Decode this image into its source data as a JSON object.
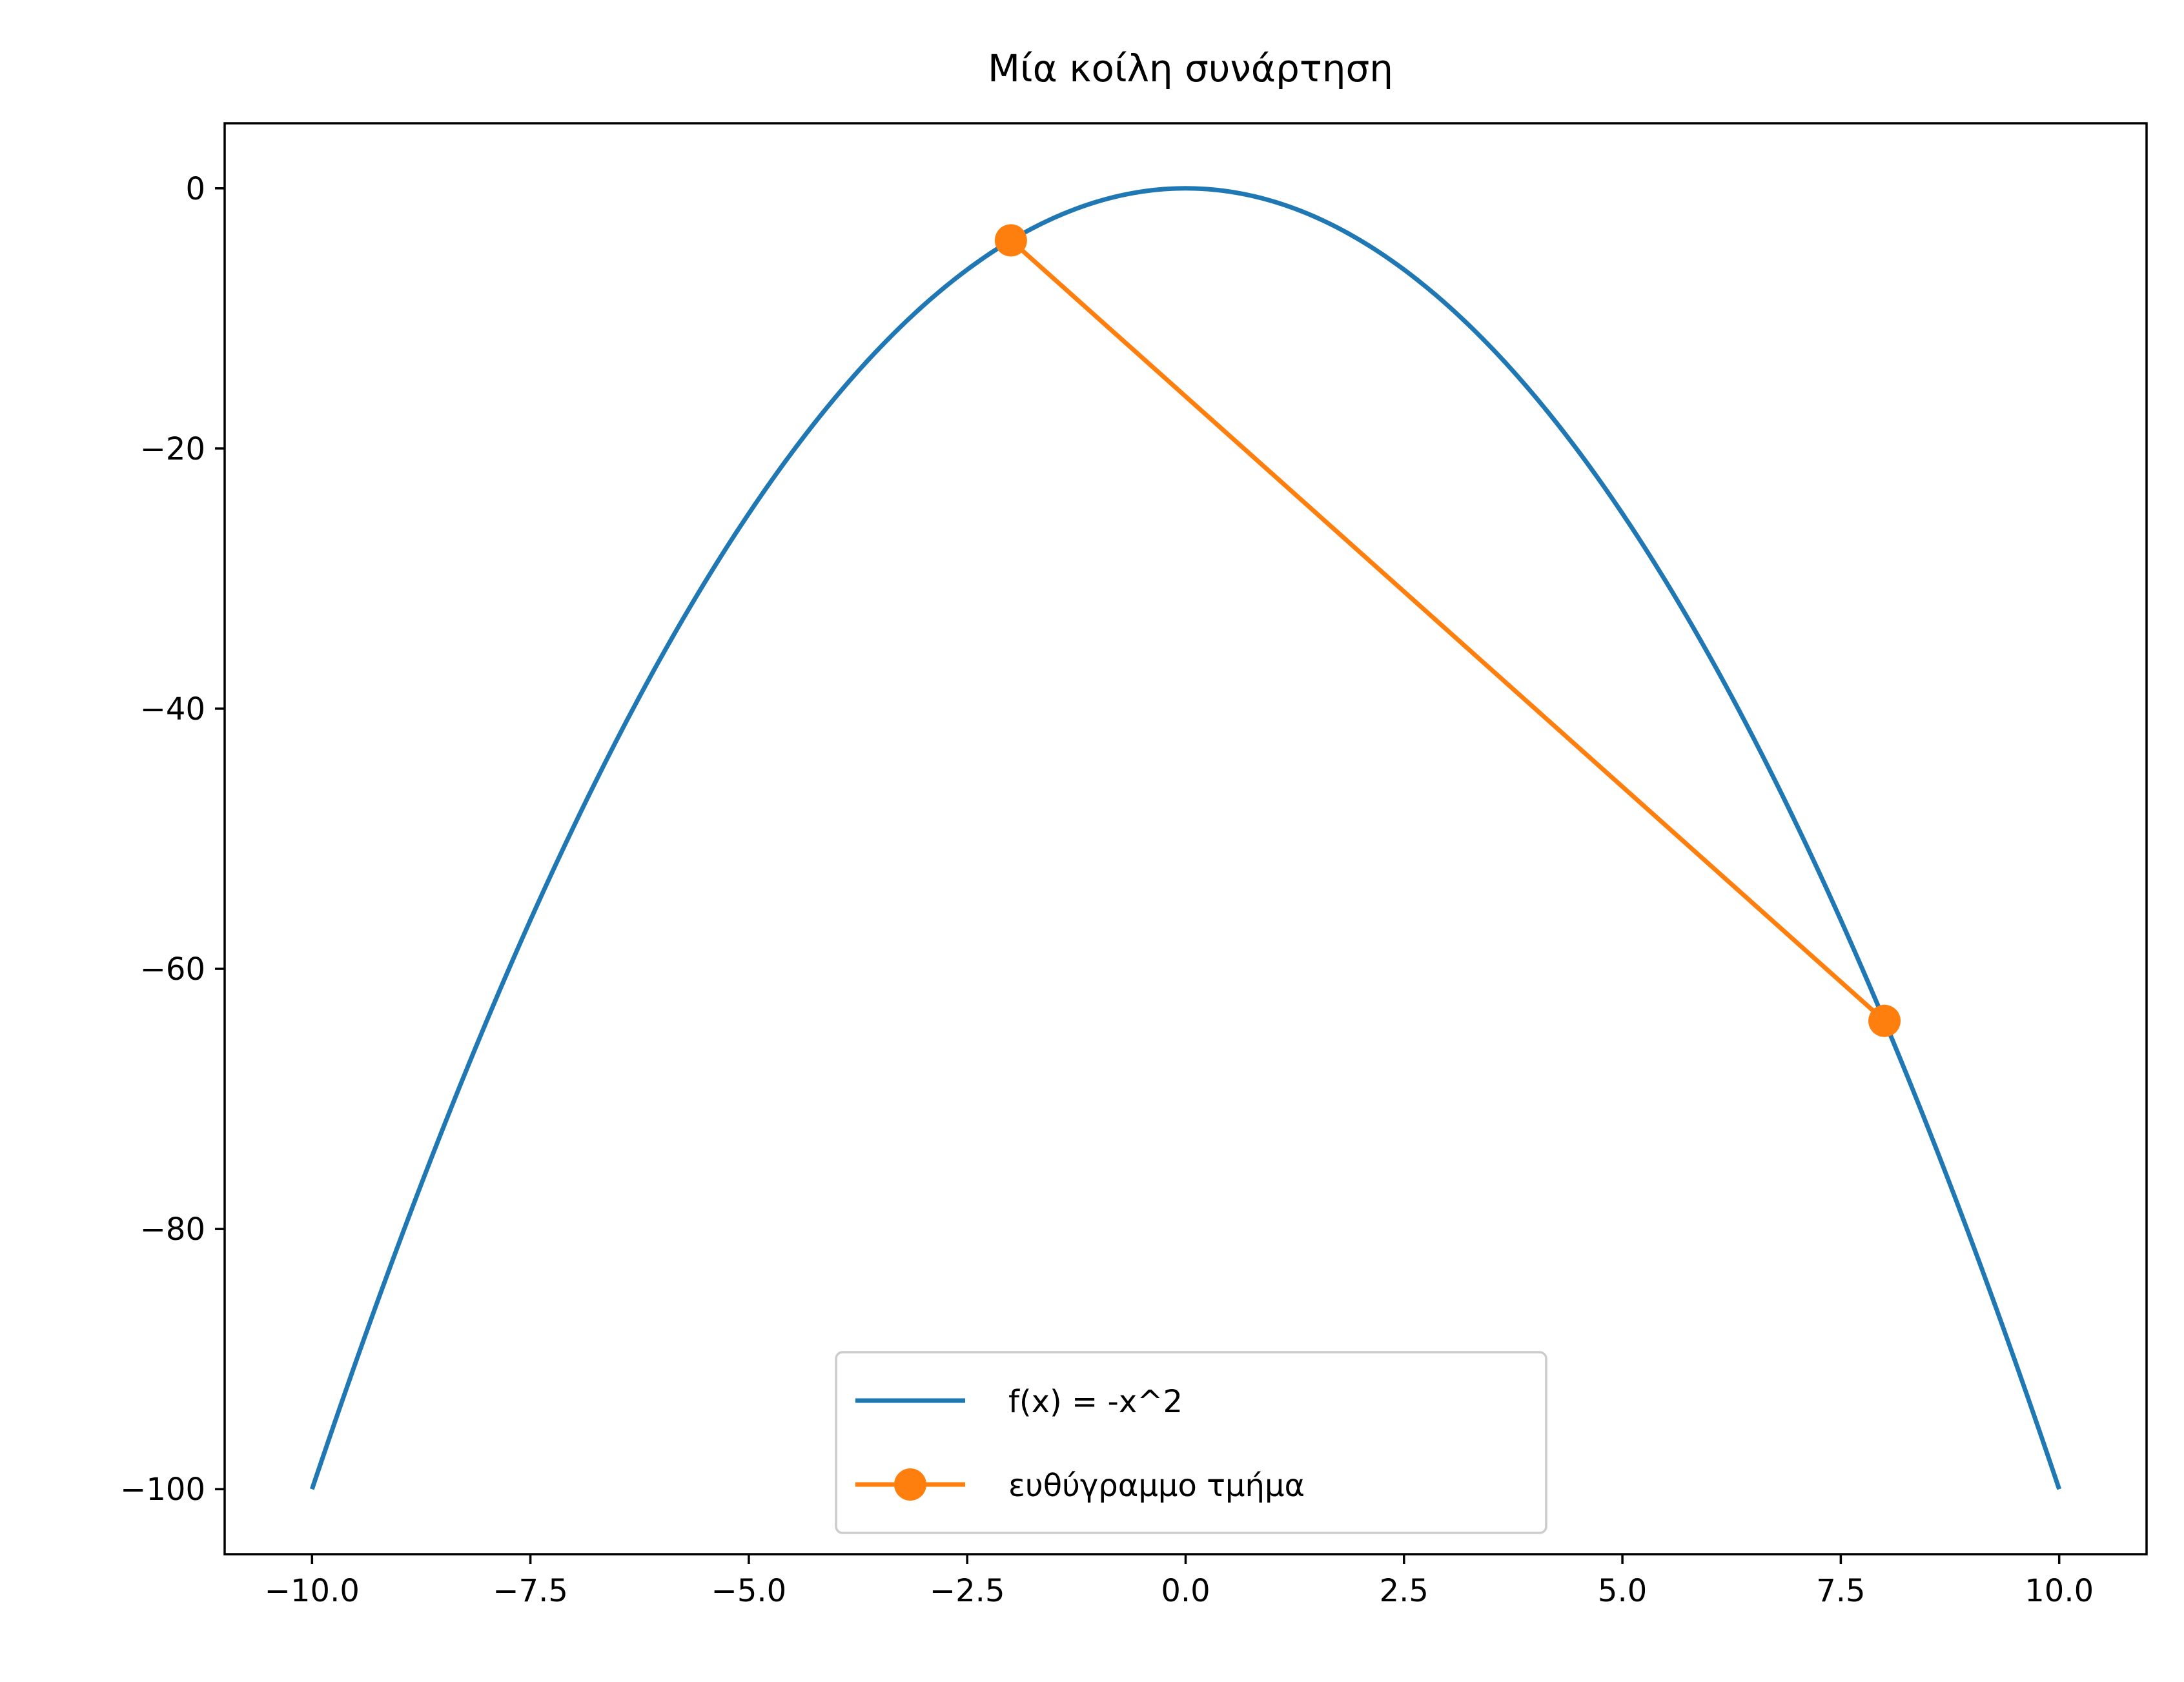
{
  "chart_data": {
    "type": "line",
    "title": "Μία κοίλη συνάρτηση",
    "xlabel": "",
    "ylabel": "",
    "xlim": [
      -11,
      11
    ],
    "ylim": [
      -105,
      5
    ],
    "xticks": [
      -10.0,
      -7.5,
      -5.0,
      -2.5,
      0.0,
      2.5,
      5.0,
      7.5,
      10.0
    ],
    "xtick_labels": [
      "−10.0",
      "−7.5",
      "−5.0",
      "−2.5",
      "0.0",
      "2.5",
      "5.0",
      "7.5",
      "10.0"
    ],
    "yticks": [
      0,
      -20,
      -40,
      -60,
      -80,
      -100
    ],
    "ytick_labels": [
      "0",
      "−20",
      "−40",
      "−60",
      "−80",
      "−100"
    ],
    "grid": false,
    "legend_position": "lower-center",
    "series": [
      {
        "name": "f(x) = -x^2",
        "color": "#1f77b4",
        "function": "-x^2",
        "x_range": [
          -10,
          10
        ],
        "markers": false
      },
      {
        "name": "ευθύγραμμο τμήμα",
        "color": "#ff7f0e",
        "x": [
          -2,
          8
        ],
        "y": [
          -4,
          -64
        ],
        "markers": true
      }
    ]
  }
}
